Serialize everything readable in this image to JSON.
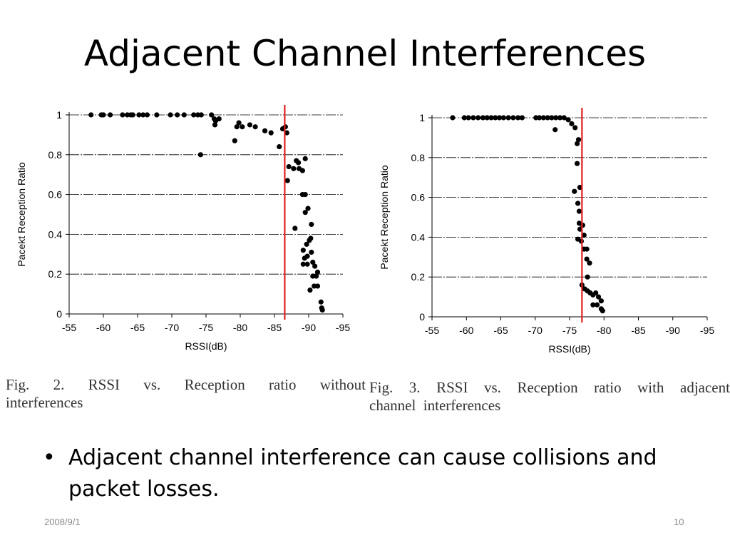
{
  "slide": {
    "title": "Adjacent Channel Interferences",
    "bullet_marker": "•",
    "bullet_text": "Adjacent channel interference can cause collisions and packet losses.",
    "footer_date": "2008/9/1",
    "page_number": "10"
  },
  "captions": {
    "left": {
      "line1": [
        "Fig.",
        "2.",
        "RSSI",
        "vs.",
        "Reception",
        "ratio",
        "without"
      ],
      "line2": "interferences"
    },
    "right": {
      "line1": [
        "Fig.",
        "3.",
        "RSSI",
        "vs.",
        "Reception",
        "ratio",
        "with",
        "adjacent"
      ],
      "line2": "channel  interferences"
    }
  },
  "colors": {
    "threshold_line": "#e02020",
    "points": "#000000",
    "grid": "#000000"
  },
  "chart_data": [
    {
      "type": "scatter",
      "xlabel": "RSSI(dB)",
      "ylabel": "Pacekt Reception Ratio",
      "xlim": [
        -55,
        -95
      ],
      "ylim": [
        0,
        1
      ],
      "x_ticks": [
        -55,
        -60,
        -65,
        -70,
        -75,
        -80,
        -85,
        -90,
        -95
      ],
      "y_ticks": [
        0,
        0.2,
        0.4,
        0.6,
        0.8,
        1
      ],
      "y_tick_labels": [
        "0",
        "0.2",
        "0.4",
        "0.6",
        "0.8",
        "1"
      ],
      "grid": "horizontal dashed",
      "threshold_x": -86.5,
      "points": [
        [
          -58.2,
          1.0
        ],
        [
          -59.7,
          1.0
        ],
        [
          -60,
          1.0
        ],
        [
          -61,
          1.0
        ],
        [
          -62.8,
          1.0
        ],
        [
          -63.5,
          1.0
        ],
        [
          -64,
          1.0
        ],
        [
          -64.3,
          1.0
        ],
        [
          -65.2,
          1.0
        ],
        [
          -65.8,
          1.0
        ],
        [
          -66.4,
          1.0
        ],
        [
          -67.8,
          1.0
        ],
        [
          -69.8,
          1.0
        ],
        [
          -70.8,
          1.0
        ],
        [
          -71.8,
          1.0
        ],
        [
          -73.2,
          1.0
        ],
        [
          -73.8,
          1.0
        ],
        [
          -74.3,
          1.0
        ],
        [
          -75.8,
          1.0
        ],
        [
          -76.2,
          0.98
        ],
        [
          -76.4,
          0.97
        ],
        [
          -76.9,
          0.98
        ],
        [
          -76.3,
          0.95
        ],
        [
          -74.2,
          0.8
        ],
        [
          -79.2,
          0.87
        ],
        [
          -79.5,
          0.94
        ],
        [
          -79.8,
          0.96
        ],
        [
          -80.3,
          0.94
        ],
        [
          -81.4,
          0.95
        ],
        [
          -82.2,
          0.94
        ],
        [
          -83.6,
          0.92
        ],
        [
          -84.5,
          0.91
        ],
        [
          -85.7,
          0.84
        ],
        [
          -86.2,
          0.93
        ],
        [
          -86.6,
          0.94
        ],
        [
          -86.8,
          0.91
        ],
        [
          -87.1,
          0.74
        ],
        [
          -87.8,
          0.73
        ],
        [
          -88.2,
          0.77
        ],
        [
          -88.5,
          0.76
        ],
        [
          -88.6,
          0.73
        ],
        [
          -89.1,
          0.72
        ],
        [
          -89.5,
          0.78
        ],
        [
          -86.9,
          0.67
        ],
        [
          -89.1,
          0.6
        ],
        [
          -89.5,
          0.6
        ],
        [
          -89.5,
          0.51
        ],
        [
          -89.9,
          0.53
        ],
        [
          -88,
          0.43
        ],
        [
          -90.4,
          0.45
        ],
        [
          -89.7,
          0.35
        ],
        [
          -90.1,
          0.37
        ],
        [
          -90.3,
          0.38
        ],
        [
          -89.2,
          0.32
        ],
        [
          -89.8,
          0.29
        ],
        [
          -90.4,
          0.31
        ],
        [
          -89.4,
          0.28
        ],
        [
          -89.8,
          0.25
        ],
        [
          -90.6,
          0.26
        ],
        [
          -90.9,
          0.24
        ],
        [
          -89.2,
          0.25
        ],
        [
          -91.3,
          0.21
        ],
        [
          -90.6,
          0.19
        ],
        [
          -91.1,
          0.19
        ],
        [
          -90.2,
          0.12
        ],
        [
          -90.8,
          0.14
        ],
        [
          -91.3,
          0.14
        ],
        [
          -91.8,
          0.06
        ],
        [
          -91.9,
          0.03
        ],
        [
          -92,
          0.02
        ]
      ]
    },
    {
      "type": "scatter",
      "xlabel": "RSSI(dB)",
      "ylabel": "Pacekt Reception Ratio",
      "xlim": [
        -55,
        -95
      ],
      "ylim": [
        0,
        1
      ],
      "x_ticks": [
        -55,
        -60,
        -65,
        -70,
        -75,
        -80,
        -85,
        -90,
        -95
      ],
      "y_ticks": [
        0,
        0.2,
        0.4,
        0.6,
        0.8,
        1
      ],
      "y_tick_labels": [
        "0",
        "0.2",
        "0.4",
        "0.6",
        "0.8",
        "1"
      ],
      "grid": "horizontal dashed",
      "threshold_x": -76.8,
      "points": [
        [
          -58,
          1.0
        ],
        [
          -59.7,
          1.0
        ],
        [
          -60.3,
          1.0
        ],
        [
          -61,
          1.0
        ],
        [
          -61.7,
          1.0
        ],
        [
          -62.4,
          1.0
        ],
        [
          -63,
          1.0
        ],
        [
          -63.6,
          1.0
        ],
        [
          -64.2,
          1.0
        ],
        [
          -64.8,
          1.0
        ],
        [
          -65.4,
          1.0
        ],
        [
          -66.1,
          1.0
        ],
        [
          -66.8,
          1.0
        ],
        [
          -67.5,
          1.0
        ],
        [
          -68.1,
          1.0
        ],
        [
          -70.1,
          1.0
        ],
        [
          -70.6,
          1.0
        ],
        [
          -71.2,
          1.0
        ],
        [
          -71.8,
          1.0
        ],
        [
          -72.4,
          1.0
        ],
        [
          -73,
          1.0
        ],
        [
          -73.6,
          1.0
        ],
        [
          -74.2,
          1.0
        ],
        [
          -74.8,
          0.99
        ],
        [
          -75.3,
          0.97
        ],
        [
          -75.8,
          0.95
        ],
        [
          -72.9,
          0.94
        ],
        [
          -76.1,
          0.87
        ],
        [
          -76.3,
          0.89
        ],
        [
          -76.1,
          0.77
        ],
        [
          -76.5,
          0.65
        ],
        [
          -75.7,
          0.63
        ],
        [
          -76.2,
          0.57
        ],
        [
          -76.4,
          0.53
        ],
        [
          -76.4,
          0.47
        ],
        [
          -76.9,
          0.46
        ],
        [
          -76.5,
          0.44
        ],
        [
          -77.1,
          0.41
        ],
        [
          -76.2,
          0.39
        ],
        [
          -76.7,
          0.38
        ],
        [
          -77.1,
          0.34
        ],
        [
          -77.5,
          0.34
        ],
        [
          -77.5,
          0.29
        ],
        [
          -77.9,
          0.27
        ],
        [
          -77.6,
          0.2
        ],
        [
          -76.8,
          0.16
        ],
        [
          -77.2,
          0.14
        ],
        [
          -77.6,
          0.13
        ],
        [
          -78,
          0.12
        ],
        [
          -78.4,
          0.11
        ],
        [
          -78.8,
          0.12
        ],
        [
          -79.2,
          0.1
        ],
        [
          -79.6,
          0.08
        ],
        [
          -78.4,
          0.06
        ],
        [
          -79,
          0.06
        ],
        [
          -79.6,
          0.04
        ],
        [
          -79.8,
          0.03
        ]
      ]
    }
  ]
}
